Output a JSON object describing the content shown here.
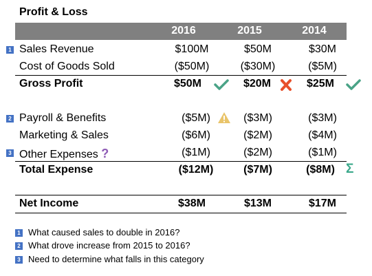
{
  "title": "Profit & Loss",
  "years": [
    "2016",
    "2015",
    "2014"
  ],
  "rows": {
    "sales": {
      "badge": "1",
      "label": "Sales Revenue",
      "values": [
        "$100M",
        "$50M",
        "$30M"
      ]
    },
    "cogs": {
      "label": "Cost of Goods Sold",
      "values": [
        "($50M)",
        "($30M)",
        "($5M)"
      ]
    },
    "gross": {
      "label": "Gross Profit",
      "values": [
        "$50M",
        "$20M",
        "$25M"
      ]
    },
    "payroll": {
      "badge": "2",
      "label": "Payroll & Benefits",
      "values": [
        "($5M)",
        "($3M)",
        "($3M)"
      ]
    },
    "marketing": {
      "label": "Marketing & Sales",
      "values": [
        "($6M)",
        "($2M)",
        "($4M)"
      ]
    },
    "other": {
      "badge": "3",
      "label": "Other Expenses",
      "question": "?",
      "values": [
        "($1M)",
        "($2M)",
        "($1M)"
      ]
    },
    "total": {
      "label": "Total Expense",
      "values": [
        "($12M)",
        "($7M)",
        "($8M)"
      ],
      "sigma": "Σ"
    },
    "net": {
      "label": "Net Income",
      "values": [
        "$38M",
        "$13M",
        "$17M"
      ]
    }
  },
  "notes": [
    {
      "badge": "1",
      "text": "What caused sales to double in 2016?"
    },
    {
      "badge": "2",
      "text": "What drove increase from 2015 to 2016?"
    },
    {
      "badge": "3",
      "text": "Need to determine what falls in this category"
    }
  ],
  "colors": {
    "header": "#808080",
    "badge": "#4472c4",
    "check": "#4aa387",
    "cross": "#e8502a",
    "warning": "#e9c46a",
    "question": "#8e5bb5",
    "sigma": "#3aa88a"
  }
}
